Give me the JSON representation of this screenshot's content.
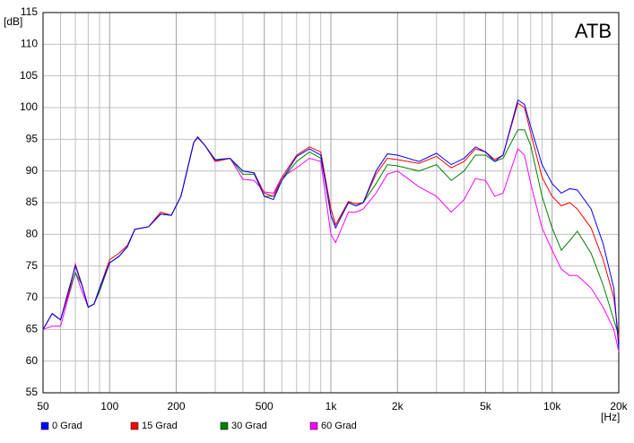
{
  "chart_data": {
    "type": "line",
    "title": "ATB",
    "y_label": "[dB]",
    "x_label": "[Hz]",
    "log_x": true,
    "grid": true,
    "xlim": [
      50,
      20000
    ],
    "ylim": [
      55,
      115
    ],
    "xticks": [
      {
        "value": 50,
        "label": "50"
      },
      {
        "value": 100,
        "label": "100"
      },
      {
        "value": 200,
        "label": "200"
      },
      {
        "value": 500,
        "label": "500"
      },
      {
        "value": 1000,
        "label": "1k"
      },
      {
        "value": 2000,
        "label": "2k"
      },
      {
        "value": 5000,
        "label": "5k"
      },
      {
        "value": 10000,
        "label": "10k"
      },
      {
        "value": 20000,
        "label": "20k"
      }
    ],
    "xminor": [
      60,
      70,
      80,
      90,
      300,
      400,
      600,
      700,
      800,
      900,
      3000,
      4000,
      6000,
      7000,
      8000,
      9000
    ],
    "yticks": [
      55,
      60,
      65,
      70,
      75,
      80,
      85,
      90,
      95,
      100,
      105,
      110,
      115
    ],
    "x": [
      50,
      55,
      60,
      65,
      70,
      75,
      80,
      85,
      90,
      100,
      110,
      120,
      130,
      150,
      170,
      190,
      210,
      240,
      250,
      270,
      300,
      350,
      400,
      450,
      500,
      550,
      600,
      700,
      800,
      900,
      1000,
      1050,
      1200,
      1300,
      1400,
      1600,
      1800,
      2000,
      2500,
      3000,
      3500,
      4000,
      4500,
      5000,
      5500,
      6000,
      7000,
      7500,
      8000,
      9000,
      10000,
      11000,
      12000,
      13000,
      15000,
      17000,
      19000,
      20000
    ],
    "series": [
      {
        "name": "60 Grad",
        "color": "#ff00ff",
        "values": [
          65,
          65.5,
          65.5,
          70,
          74,
          71,
          68.5,
          69,
          71,
          75.5,
          76.5,
          78,
          80.8,
          81.2,
          83.2,
          83,
          86,
          94.5,
          95.3,
          94,
          91.5,
          92,
          88.7,
          88.5,
          86.7,
          86.5,
          89,
          90.5,
          92,
          91.5,
          80,
          78.7,
          83.5,
          83.5,
          84,
          86.5,
          89.5,
          90,
          87.5,
          86,
          83.5,
          85.5,
          88.8,
          88.5,
          86,
          86.5,
          93.5,
          92.5,
          88,
          81,
          77.5,
          74.5,
          73.5,
          73.5,
          71.5,
          68.5,
          65,
          61.5
        ]
      },
      {
        "name": "30 Grad",
        "color": "#008000",
        "values": [
          65,
          67.5,
          66.5,
          70.5,
          74,
          72,
          68.5,
          69,
          71,
          75.5,
          76.5,
          78,
          80.8,
          81.2,
          83.2,
          83,
          86,
          94.5,
          95.3,
          94,
          91.8,
          92,
          89.5,
          89.5,
          86,
          86,
          88.5,
          91.5,
          93,
          92,
          84,
          81.5,
          85,
          84.5,
          85,
          88,
          91,
          90.8,
          90,
          91,
          88.5,
          90,
          92.5,
          92.5,
          91.5,
          92,
          96.5,
          96.5,
          94,
          86,
          81,
          77.5,
          79,
          80.5,
          77,
          72,
          66.5,
          64
        ]
      },
      {
        "name": "15 Grad",
        "color": "#ff0000",
        "values": [
          65,
          67.5,
          66.5,
          70.5,
          75.3,
          72,
          68.5,
          69,
          71.5,
          76,
          77,
          78.2,
          80.8,
          81.2,
          83.5,
          83,
          86,
          94.5,
          95.4,
          94,
          91.5,
          92,
          90,
          89.7,
          86.5,
          86,
          89,
          92.5,
          93.8,
          93,
          84,
          81.5,
          85.2,
          84.8,
          85,
          89.5,
          92,
          91.8,
          91.2,
          92.3,
          90.5,
          91.5,
          93.5,
          93,
          91.8,
          92.5,
          100.7,
          100,
          96,
          89,
          86,
          84.5,
          85,
          84,
          81,
          76,
          70,
          63.5
        ]
      },
      {
        "name": "0 Grad",
        "color": "#0000ff",
        "values": [
          65,
          67.5,
          66.5,
          71,
          75,
          72,
          68.5,
          69,
          71.5,
          75.5,
          76.5,
          78,
          80.8,
          81.2,
          83.2,
          83,
          86,
          94.5,
          95.3,
          94,
          91.7,
          92,
          90,
          89.7,
          86,
          85.5,
          88.5,
          92.3,
          93.5,
          92.5,
          83,
          81,
          85,
          84.5,
          85,
          90,
          92.7,
          92.5,
          91.5,
          92.8,
          91,
          92,
          93.8,
          93,
          91.5,
          92.5,
          101.2,
          100.5,
          97,
          91,
          88,
          86.5,
          87.2,
          87,
          84,
          78.5,
          71.5,
          62
        ]
      }
    ]
  }
}
